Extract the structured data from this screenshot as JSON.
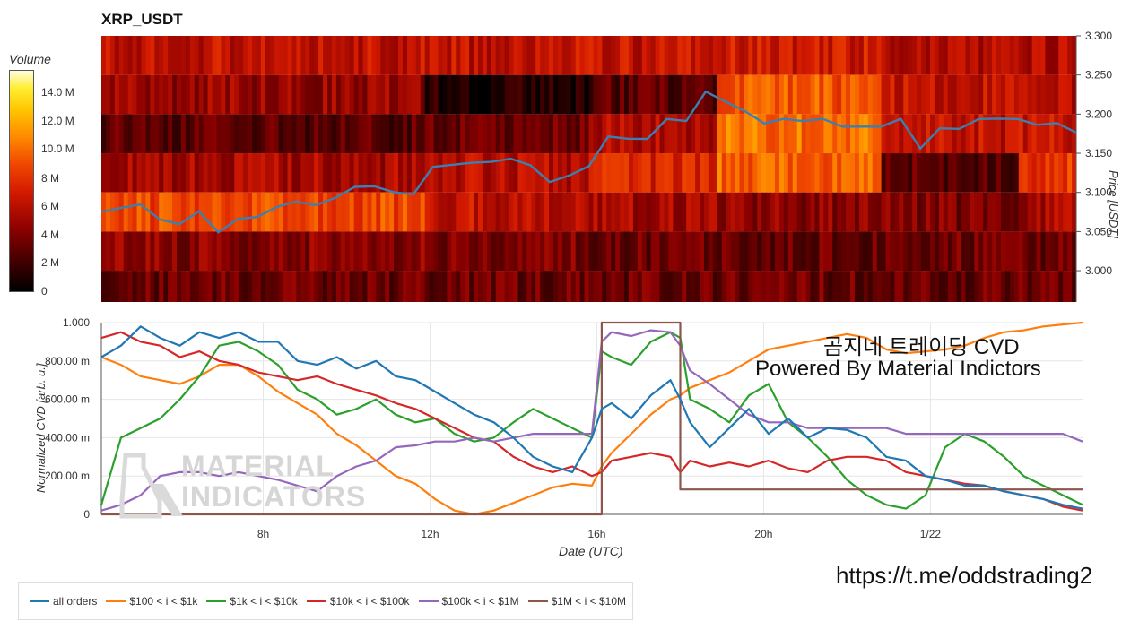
{
  "title": "XRP_USDT",
  "overlay": {
    "line1": "곰지네 트레이딩 CVD",
    "line2": "Powered By Material Indictors",
    "link": "https://t.me/oddstrading2"
  },
  "watermark": {
    "line1": "MATERIAL",
    "line2": "INDICATORS"
  },
  "colors": {
    "price_line": "#3d7fb0",
    "all_orders": "#1f77b4",
    "s100_1k": "#ff7f0e",
    "s1k_10k": "#2ca02c",
    "s10k_100k": "#d62728",
    "s100k_1m": "#9467bd",
    "s1m_10m": "#8c564b"
  },
  "chart_data": [
    {
      "type": "heatmap",
      "name": "orderbook-volume-heatmap",
      "title": "XRP_USDT",
      "ylabel": "Price [USDT]",
      "ylim": [
        2.96,
        3.3
      ],
      "yticks": [
        "3.300",
        "3.250",
        "3.200",
        "3.150",
        "3.100",
        "3.050",
        "3.000"
      ],
      "price_bands": [
        3.3,
        3.25,
        3.2,
        3.15,
        3.1,
        3.05,
        3.0,
        2.96
      ],
      "colorbar": {
        "title": "Volume",
        "ticks": [
          "14.0 M",
          "12.0 M",
          "10.0 M",
          "8 M",
          "6 M",
          "4 M",
          "2 M",
          "0"
        ],
        "max": 16
      },
      "bands_description": "volume (M) per price band over time, approximate",
      "segments": [
        {
          "start": 0.0,
          "end": 0.33,
          "levels": [
            6.5,
            5.0,
            3.0,
            5.5,
            9.0,
            4.5,
            3.5,
            3.0
          ]
        },
        {
          "start": 0.33,
          "end": 0.5,
          "levels": [
            6.5,
            1.0,
            3.5,
            6.0,
            6.5,
            4.0,
            3.5,
            3.0
          ]
        },
        {
          "start": 0.5,
          "end": 0.5,
          "levels": [
            6.0,
            1.0,
            5.5,
            8.0,
            6.0,
            3.5,
            3.5,
            3.0
          ]
        },
        {
          "start": 0.5,
          "end": 0.63,
          "levels": [
            6.5,
            3.0,
            6.0,
            7.5,
            5.5,
            3.5,
            3.5,
            3.0
          ]
        },
        {
          "start": 0.63,
          "end": 0.8,
          "levels": [
            7.0,
            9.5,
            10.5,
            10.0,
            4.5,
            3.5,
            3.5,
            3.0
          ]
        },
        {
          "start": 0.8,
          "end": 0.94,
          "levels": [
            6.0,
            6.5,
            6.5,
            3.0,
            4.0,
            3.5,
            3.5,
            3.0
          ]
        },
        {
          "start": 0.94,
          "end": 1.0,
          "levels": [
            6.0,
            6.0,
            6.5,
            8.5,
            5.5,
            3.5,
            3.5,
            3.0
          ]
        }
      ],
      "price_series": {
        "name": "price",
        "x": [
          0.0,
          0.02,
          0.04,
          0.06,
          0.08,
          0.1,
          0.12,
          0.14,
          0.16,
          0.18,
          0.2,
          0.22,
          0.24,
          0.26,
          0.28,
          0.3,
          0.32,
          0.34,
          0.36,
          0.38,
          0.4,
          0.42,
          0.44,
          0.46,
          0.48,
          0.5,
          0.52,
          0.54,
          0.56,
          0.58,
          0.6,
          0.62,
          0.64,
          0.66,
          0.68,
          0.7,
          0.72,
          0.74,
          0.76,
          0.78,
          0.8,
          0.82,
          0.84,
          0.86,
          0.88,
          0.9,
          0.92,
          0.94,
          0.96,
          0.98,
          1.0
        ],
        "y": [
          3.075,
          3.08,
          3.085,
          3.065,
          3.06,
          3.075,
          3.05,
          3.065,
          3.07,
          3.08,
          3.09,
          3.082,
          3.095,
          3.105,
          3.11,
          3.098,
          3.1,
          3.13,
          3.138,
          3.135,
          3.142,
          3.14,
          3.138,
          3.11,
          3.125,
          3.13,
          3.175,
          3.165,
          3.172,
          3.19,
          3.195,
          3.225,
          3.22,
          3.2,
          3.192,
          3.19,
          3.195,
          3.19,
          3.188,
          3.18,
          3.188,
          3.19,
          3.16,
          3.178,
          3.185,
          3.19,
          3.198,
          3.19,
          3.19,
          3.185,
          3.18
        ]
      }
    },
    {
      "type": "line",
      "name": "normalized-cvd",
      "xlabel": "Date (UTC)",
      "ylabel": "Normalized CVD [arb. u.]",
      "ylim": [
        0,
        1.0
      ],
      "yticks": [
        "1.000",
        "800.00 m",
        "600.00 m",
        "400.00 m",
        "200.00 m",
        "0"
      ],
      "xticks": [
        {
          "at": 0.165,
          "label": "8h"
        },
        {
          "at": 0.335,
          "label": "12h"
        },
        {
          "at": 0.505,
          "label": "16h"
        },
        {
          "at": 0.675,
          "label": "20h"
        },
        {
          "at": 0.845,
          "label": "1/22"
        }
      ],
      "x": [
        0.0,
        0.02,
        0.04,
        0.06,
        0.08,
        0.1,
        0.12,
        0.14,
        0.16,
        0.18,
        0.2,
        0.22,
        0.24,
        0.26,
        0.28,
        0.3,
        0.32,
        0.34,
        0.36,
        0.38,
        0.4,
        0.42,
        0.44,
        0.46,
        0.48,
        0.5,
        0.51,
        0.52,
        0.54,
        0.56,
        0.58,
        0.59,
        0.6,
        0.62,
        0.64,
        0.66,
        0.68,
        0.7,
        0.72,
        0.74,
        0.76,
        0.78,
        0.8,
        0.82,
        0.84,
        0.86,
        0.88,
        0.9,
        0.92,
        0.94,
        0.96,
        0.98,
        1.0
      ],
      "series": [
        {
          "name": "all orders",
          "key": "all_orders",
          "values": [
            0.82,
            0.88,
            0.98,
            0.92,
            0.88,
            0.95,
            0.92,
            0.95,
            0.9,
            0.9,
            0.8,
            0.78,
            0.82,
            0.76,
            0.8,
            0.72,
            0.7,
            0.64,
            0.58,
            0.52,
            0.48,
            0.4,
            0.3,
            0.25,
            0.22,
            0.4,
            0.55,
            0.58,
            0.5,
            0.62,
            0.7,
            0.6,
            0.48,
            0.35,
            0.45,
            0.55,
            0.42,
            0.5,
            0.4,
            0.45,
            0.44,
            0.4,
            0.3,
            0.28,
            0.2,
            0.18,
            0.15,
            0.15,
            0.12,
            0.1,
            0.08,
            0.05,
            0.03
          ]
        },
        {
          "name": "$100 < i < $1k",
          "key": "s100_1k",
          "values": [
            0.82,
            0.78,
            0.72,
            0.7,
            0.68,
            0.72,
            0.78,
            0.78,
            0.72,
            0.64,
            0.58,
            0.52,
            0.42,
            0.36,
            0.28,
            0.2,
            0.16,
            0.08,
            0.02,
            0.0,
            0.02,
            0.06,
            0.1,
            0.14,
            0.16,
            0.15,
            0.25,
            0.32,
            0.42,
            0.52,
            0.6,
            0.62,
            0.66,
            0.7,
            0.74,
            0.8,
            0.86,
            0.88,
            0.9,
            0.92,
            0.94,
            0.92,
            0.86,
            0.84,
            0.85,
            0.86,
            0.88,
            0.92,
            0.95,
            0.96,
            0.98,
            0.99,
            1.0
          ]
        },
        {
          "name": "$1k < i < $10k",
          "key": "s1k_10k",
          "values": [
            0.05,
            0.4,
            0.45,
            0.5,
            0.6,
            0.72,
            0.88,
            0.9,
            0.85,
            0.78,
            0.65,
            0.6,
            0.52,
            0.55,
            0.6,
            0.52,
            0.48,
            0.5,
            0.42,
            0.38,
            0.4,
            0.48,
            0.55,
            0.5,
            0.45,
            0.4,
            0.85,
            0.82,
            0.78,
            0.9,
            0.95,
            0.92,
            0.6,
            0.55,
            0.48,
            0.62,
            0.68,
            0.48,
            0.4,
            0.3,
            0.18,
            0.1,
            0.05,
            0.03,
            0.1,
            0.35,
            0.42,
            0.38,
            0.3,
            0.2,
            0.15,
            0.1,
            0.05
          ]
        },
        {
          "name": "$10k < i < $100k",
          "key": "s10k_100k",
          "values": [
            0.92,
            0.95,
            0.9,
            0.88,
            0.82,
            0.85,
            0.8,
            0.78,
            0.74,
            0.72,
            0.7,
            0.72,
            0.68,
            0.65,
            0.62,
            0.58,
            0.55,
            0.5,
            0.45,
            0.4,
            0.38,
            0.3,
            0.25,
            0.22,
            0.25,
            0.2,
            0.22,
            0.28,
            0.3,
            0.32,
            0.3,
            0.22,
            0.28,
            0.25,
            0.27,
            0.25,
            0.28,
            0.24,
            0.22,
            0.28,
            0.3,
            0.3,
            0.28,
            0.22,
            0.2,
            0.18,
            0.16,
            0.15,
            0.12,
            0.1,
            0.08,
            0.04,
            0.02
          ]
        },
        {
          "name": "$100k < i < $1M",
          "key": "s100k_1m",
          "values": [
            0.02,
            0.05,
            0.1,
            0.2,
            0.22,
            0.22,
            0.2,
            0.22,
            0.2,
            0.18,
            0.15,
            0.12,
            0.2,
            0.25,
            0.28,
            0.35,
            0.36,
            0.38,
            0.38,
            0.4,
            0.38,
            0.4,
            0.42,
            0.42,
            0.42,
            0.42,
            0.9,
            0.95,
            0.93,
            0.96,
            0.95,
            0.88,
            0.75,
            0.68,
            0.6,
            0.52,
            0.48,
            0.48,
            0.45,
            0.45,
            0.45,
            0.45,
            0.45,
            0.42,
            0.42,
            0.42,
            0.42,
            0.42,
            0.42,
            0.42,
            0.42,
            0.42,
            0.38
          ]
        },
        {
          "name": "$1M < i < $10M",
          "key": "s1m_10m",
          "values": [
            0.0,
            0.0,
            0.0,
            0.0,
            0.0,
            0.0,
            0.0,
            0.0,
            0.0,
            0.0,
            0.0,
            0.0,
            0.0,
            0.0,
            0.0,
            0.0,
            0.0,
            0.0,
            0.0,
            0.0,
            0.0,
            0.0,
            0.0,
            0.0,
            0.0,
            0.0,
            1.0,
            1.0,
            1.0,
            1.0,
            1.0,
            0.13,
            0.13,
            0.13,
            0.13,
            0.13,
            0.13,
            0.13,
            0.13,
            0.13,
            0.13,
            0.13,
            0.13,
            0.13,
            0.13,
            0.13,
            0.13,
            0.13,
            0.13,
            0.13,
            0.13,
            0.13,
            0.13
          ]
        }
      ]
    }
  ]
}
